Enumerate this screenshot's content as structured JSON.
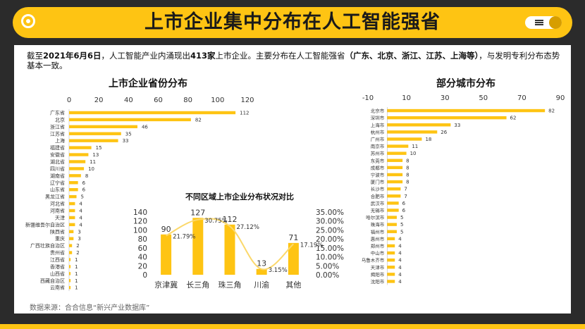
{
  "header": {
    "title": "上市企业集中分布在人工智能强省"
  },
  "intro": {
    "p1": "截至",
    "b1": "2021年6月6日",
    "p2": "，人工智能产业内涌现出",
    "b2": "413家",
    "p3": "上市企业。主要分布在人工智能强省",
    "b3": "（广东、北京、浙江、江苏、上海等）",
    "p4": "，与发明专利分布态势基本一致。"
  },
  "source": "数据来源：合合信息“新兴产业数据库”",
  "colors": {
    "accent": "#fec413",
    "bar": "#fec413",
    "line": "#fbd86b",
    "dark": "#2b2b2b"
  },
  "chart_data": [
    {
      "type": "bar",
      "orientation": "horizontal",
      "title": "上市企业省份分布",
      "xlim": [
        0,
        120
      ],
      "xticks": [
        0,
        20,
        40,
        60,
        80,
        100,
        120
      ],
      "categories": [
        "广东省",
        "北京",
        "浙江省",
        "江苏省",
        "上海",
        "福建省",
        "安徽省",
        "湖北省",
        "四川省",
        "湖南省",
        "辽宁省",
        "山东省",
        "黑龙江省",
        "河北省",
        "河南省",
        "天津",
        "新疆维吾尔自治区",
        "陕西省",
        "重庆",
        "广西壮族自治区",
        "贵州省",
        "江西省",
        "香港省",
        "山西省",
        "西藏自治区",
        "云南省"
      ],
      "values": [
        112,
        82,
        46,
        35,
        33,
        15,
        13,
        11,
        10,
        8,
        6,
        6,
        5,
        4,
        4,
        4,
        4,
        3,
        3,
        2,
        2,
        1,
        1,
        1,
        1,
        1
      ]
    },
    {
      "type": "bar",
      "orientation": "horizontal",
      "title": "部分城市分布",
      "xlim": [
        -10,
        90
      ],
      "xticks": [
        -10,
        10,
        30,
        50,
        70,
        90
      ],
      "categories": [
        "北京市",
        "深圳市",
        "上海市",
        "杭州市",
        "广州市",
        "南京市",
        "苏州市",
        "东莞市",
        "成都市",
        "宁波市",
        "厦门市",
        "长沙市",
        "合肥市",
        "武汉市",
        "无锡市",
        "哈尔滨市",
        "珠海市",
        "福州市",
        "惠州市",
        "郑州市",
        "中山市",
        "乌鲁木齐市",
        "天津市",
        "揭阳市",
        "沈阳市"
      ],
      "values": [
        82,
        62,
        33,
        26,
        18,
        11,
        10,
        8,
        8,
        8,
        8,
        7,
        7,
        6,
        6,
        5,
        5,
        5,
        4,
        4,
        4,
        4,
        4,
        4,
        4
      ]
    },
    {
      "type": "bar+line",
      "title": "不同区域上市企业分布状况对比",
      "categories": [
        "京津冀",
        "长三角",
        "珠三角",
        "川渝",
        "其他"
      ],
      "values": [
        90,
        127,
        112,
        13,
        71
      ],
      "ylim": [
        0,
        140
      ],
      "yticks": [
        0,
        20,
        40,
        60,
        80,
        100,
        120,
        140
      ],
      "share_labels": [
        "21.79%",
        "30.75%",
        "27.12%",
        "3.15%",
        "17.19%"
      ],
      "share": [
        21.79,
        30.75,
        27.12,
        3.15,
        17.19
      ],
      "y2lim": [
        0,
        35
      ],
      "y2ticks": [
        "0.00%",
        "5.00%",
        "10.00%",
        "15.00%",
        "20.00%",
        "25.00%",
        "30.00%",
        "35.00%"
      ]
    }
  ]
}
